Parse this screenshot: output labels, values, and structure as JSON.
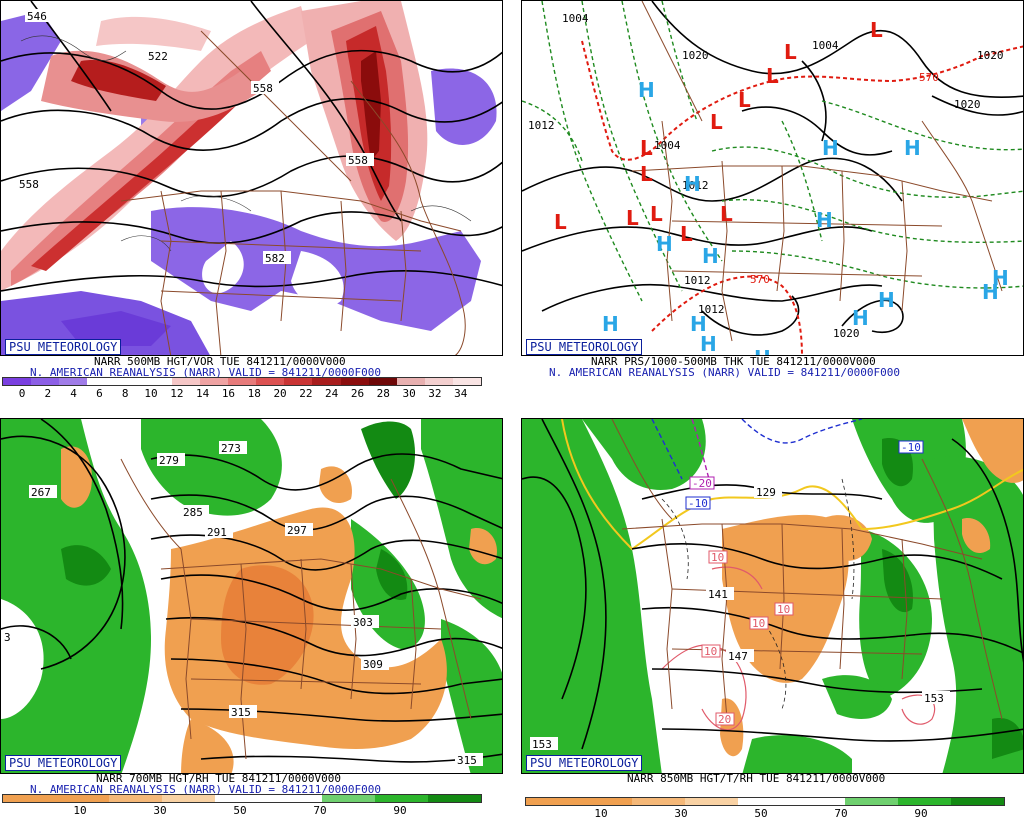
{
  "panels": [
    {
      "badge": "PSU METEOROLOGY",
      "caption": "NARR 500MB HGT/VOR TUE 841211/0000V000",
      "subcaption": "N. AMERICAN REANALYSIS (NARR) VALID = 841211/0000F000",
      "colorbar": {
        "colors": [
          "#7a3fe0",
          "#8c5fe6",
          "#a07ce8",
          "#ffffff",
          "#ffffff",
          "#ffffff",
          "#f6c7c7",
          "#efa3a3",
          "#e77b7b",
          "#dc5252",
          "#c93434",
          "#a81d1d",
          "#8b0d0d",
          "#6e0707",
          "#e8b0b0",
          "#f3cfcf",
          "#f9e4e4"
        ],
        "ticks": [
          "0",
          "2",
          "4",
          "6",
          "8",
          "10",
          "12",
          "14",
          "16",
          "18",
          "20",
          "22",
          "24",
          "26",
          "28",
          "30",
          "32",
          "34"
        ]
      },
      "contour_labels": [
        "546",
        "522",
        "558",
        "558",
        "582",
        "558"
      ],
      "letters": []
    },
    {
      "badge": "PSU METEOROLOGY",
      "caption": "NARR PRS/1000-500MB THK TUE 841211/0000V000",
      "subcaption": "N. AMERICAN REANALYSIS (NARR) VALID = 841211/0000F000",
      "contour_labels": [
        "1004",
        "1020",
        "1004",
        "1012",
        "1020",
        "1020",
        "1004",
        "1012",
        "1012",
        "1012",
        "1020",
        "570",
        "570"
      ],
      "pressure_centers": [
        "L",
        "L",
        "L",
        "L",
        "L",
        "L",
        "L",
        "L",
        "L",
        "L",
        "L",
        "L",
        "H",
        "H",
        "H",
        "H",
        "H",
        "H",
        "H",
        "H",
        "H",
        "H",
        "H",
        "H",
        "H",
        "H",
        "H"
      ]
    },
    {
      "badge": "PSU METEOROLOGY",
      "caption": "NARR 700MB HGT/RH TUE 841211/0000V000",
      "subcaption": "N. AMERICAN REANALYSIS (NARR) VALID = 841211/0000F000",
      "colorbar": {
        "colors": [
          "#f0a050",
          "#f0a050",
          "#f5b878",
          "#f9d2a4",
          "#ffffff",
          "#ffffff",
          "#6fd06f",
          "#2cb52c",
          "#138a13"
        ],
        "ticks": [
          "10",
          "30",
          "50",
          "70",
          "90"
        ]
      },
      "contour_labels": [
        "279",
        "273",
        "267",
        "285",
        "291",
        "297",
        "303",
        "309",
        "315",
        "315",
        "3"
      ]
    },
    {
      "badge": "PSU METEOROLOGY",
      "caption": "NARR 850MB HGT/T/RH TUE 841211/0000V000",
      "subcaption": "",
      "colorbar": {
        "colors": [
          "#f0a050",
          "#f0a050",
          "#f5b878",
          "#f9d2a4",
          "#ffffff",
          "#ffffff",
          "#6fd06f",
          "#2cb52c",
          "#138a13"
        ],
        "ticks": [
          "10",
          "30",
          "50",
          "70",
          "90"
        ]
      },
      "contour_labels": [
        "129",
        "141",
        "147",
        "153",
        "153"
      ],
      "temp_labels": [
        "-20",
        "-10",
        "-10",
        "10",
        "10",
        "10",
        "10",
        "20"
      ]
    }
  ]
}
